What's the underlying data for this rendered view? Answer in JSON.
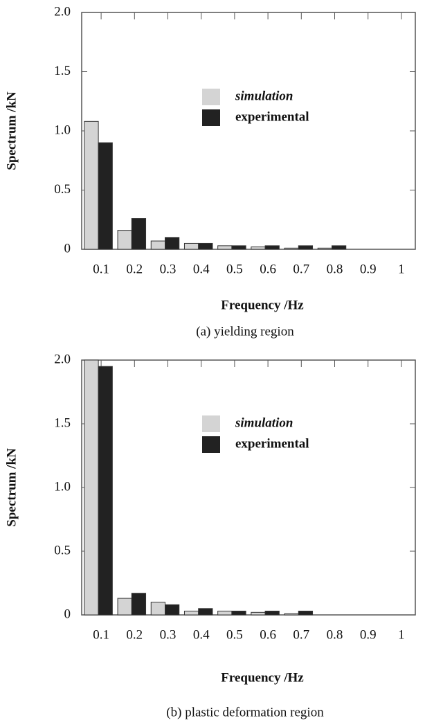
{
  "chart_data": [
    {
      "type": "bar",
      "caption": "(a) yielding region",
      "x_label": "Frequency /Hz",
      "y_label": "Spectrum /kN",
      "categories": [
        "0.1",
        "0.2",
        "0.3",
        "0.4",
        "0.5",
        "0.6",
        "0.7",
        "0.8",
        "0.9",
        "1"
      ],
      "series": [
        {
          "name": "simulation",
          "color": "#d4d4d4",
          "values": [
            1.08,
            0.16,
            0.07,
            0.05,
            0.03,
            0.02,
            0.01,
            0.01,
            0,
            0
          ]
        },
        {
          "name": "experimental",
          "color": "#222222",
          "values": [
            0.9,
            0.26,
            0.1,
            0.05,
            0.03,
            0.03,
            0.03,
            0.03,
            0,
            0
          ]
        }
      ],
      "ylim": [
        0,
        2
      ],
      "yticks": [
        0,
        0.5,
        {
          "value": 1,
          "label": "1.0"
        },
        1.5,
        {
          "value": 2,
          "label": "2.0"
        }
      ]
    },
    {
      "type": "bar",
      "caption": "(b) plastic deformation region",
      "x_label": "Frequency /Hz",
      "y_label": "Spectrum /kN",
      "categories": [
        "0.1",
        "0.2",
        "0.3",
        "0.4",
        "0.5",
        "0.6",
        "0.7",
        "0.8",
        "0.9",
        "1"
      ],
      "series": [
        {
          "name": "simulation",
          "color": "#d4d4d4",
          "values": [
            2.0,
            0.13,
            0.1,
            0.03,
            0.03,
            0.02,
            0.01,
            0,
            0,
            0
          ]
        },
        {
          "name": "experimental",
          "color": "#222222",
          "values": [
            1.95,
            0.17,
            0.08,
            0.05,
            0.03,
            0.03,
            0.03,
            0,
            0,
            0
          ]
        }
      ],
      "ylim": [
        0,
        2
      ],
      "yticks": [
        0,
        0.5,
        {
          "value": 1,
          "label": "1.0"
        },
        1.5,
        {
          "value": 2,
          "label": "2.0"
        }
      ]
    }
  ]
}
